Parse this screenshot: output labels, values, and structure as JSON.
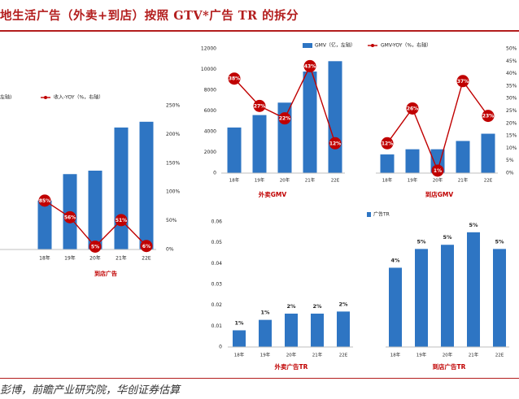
{
  "header": {
    "title": "地生活广告（外卖+到店）按照 GTV*广告 TR 的拆分"
  },
  "footer": {
    "source": "彭博，前瞻产业研究院，华创证券估算"
  },
  "colors": {
    "bar": "#2e75c3",
    "line": "#c00000",
    "label_text": "#ffffff",
    "accent": "#b31d1d"
  },
  "chart_data": [
    {
      "type": "bar",
      "title": "到店广告",
      "categories": [
        "18年",
        "19年",
        "20年",
        "21年",
        "22E"
      ],
      "series": [
        {
          "name": "",
          "kind": "bar",
          "axis": "left",
          "values": [
            null,
            null,
            null,
            null,
            null
          ]
        },
        {
          "name": "收入-YOY（%，右轴）",
          "kind": "line",
          "axis": "right",
          "values": [
            85,
            56,
            5,
            51,
            6
          ]
        }
      ],
      "bar_heights_relative_to_right_axis": [
        85,
        131,
        137,
        212,
        222
      ],
      "bar_name_visible": "左轴)",
      "y2ticks": [
        "0%",
        "50%",
        "100%",
        "150%",
        "200%",
        "250%"
      ],
      "ylim2": [
        0,
        250
      ],
      "data_labels": [
        "85%",
        "56%",
        "5%",
        "51%",
        "6%"
      ],
      "legend": "top",
      "grid": false
    },
    {
      "type": "bar",
      "legend": "top",
      "grid": false,
      "panel_titles": [
        "外卖GMV",
        "到店GMV"
      ],
      "series": [
        {
          "name": "GMV（亿，左轴）",
          "kind": "bar",
          "axis": "left",
          "groups": [
            {
              "title": "外卖GMV",
              "categories": [
                "18年",
                "19年",
                "20年",
                "21年",
                "22E"
              ],
              "values": [
                4400,
                5600,
                6800,
                9800,
                10800
              ]
            },
            {
              "title": "到店GMV",
              "categories": [
                "18年",
                "19年",
                "20年",
                "21年",
                "22E"
              ],
              "values": [
                1800,
                2300,
                2300,
                3100,
                3800
              ]
            }
          ]
        },
        {
          "name": "GMV-YOY（%，右轴）",
          "kind": "line",
          "axis": "right",
          "groups": [
            {
              "title": "外卖GMV",
              "values": [
                38,
                27,
                22,
                43,
                12
              ],
              "labels": [
                "38%",
                "27%",
                "22%",
                "43%",
                "12%"
              ]
            },
            {
              "title": "到店GMV",
              "values": [
                12,
                26,
                1,
                37,
                23
              ],
              "labels": [
                "12%",
                "26%",
                "1%",
                "37%",
                "23%"
              ]
            }
          ]
        }
      ],
      "yticks": [
        "0",
        "2000",
        "4000",
        "6000",
        "8000",
        "10000",
        "12000"
      ],
      "ylim": [
        0,
        12000
      ],
      "y2ticks": [
        "0%",
        "5%",
        "10%",
        "15%",
        "20%",
        "25%",
        "30%",
        "35%",
        "40%",
        "45%",
        "50%"
      ],
      "ylim2": [
        0,
        50
      ]
    },
    {
      "type": "bar",
      "legend": "top",
      "grid": false,
      "panel_titles": [
        "外卖广告TR",
        "到店广告TR"
      ],
      "series": [
        {
          "name": "广告TR",
          "groups": [
            {
              "title": "外卖广告TR",
              "categories": [
                "18年",
                "19年",
                "20年",
                "21年",
                "22E"
              ],
              "values": [
                0.008,
                0.013,
                0.016,
                0.016,
                0.017
              ],
              "labels": [
                "1%",
                "1%",
                "2%",
                "2%",
                "2%"
              ]
            },
            {
              "title": "到店广告TR",
              "categories": [
                "18年",
                "19年",
                "20年",
                "21年",
                "22E"
              ],
              "values": [
                0.038,
                0.047,
                0.049,
                0.055,
                0.047
              ],
              "labels": [
                "4%",
                "5%",
                "5%",
                "5%",
                "5%"
              ]
            }
          ]
        }
      ],
      "yticks": [
        "0",
        "0.01",
        "0.02",
        "0.03",
        "0.04",
        "0.05",
        "0.06"
      ],
      "ylim": [
        0,
        0.06
      ]
    }
  ]
}
